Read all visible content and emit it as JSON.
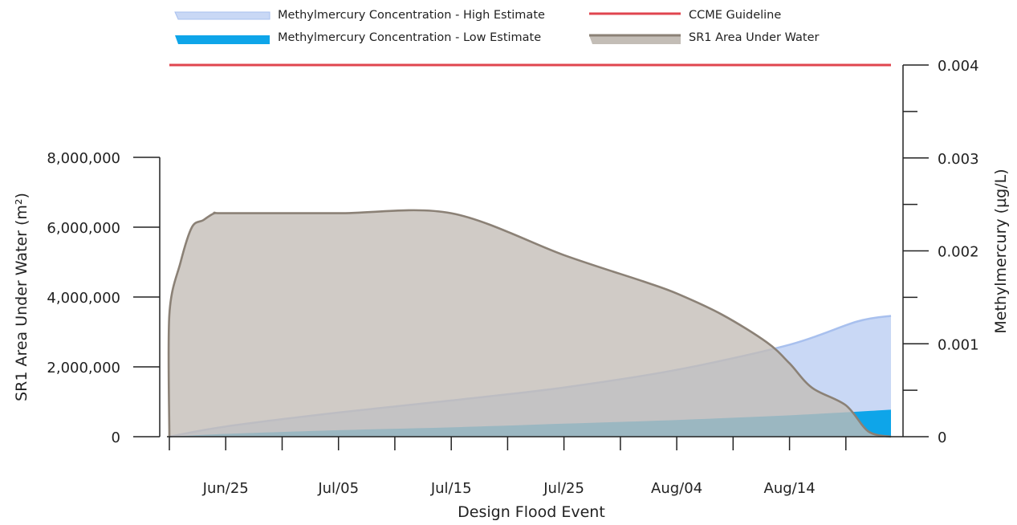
{
  "chart_data": {
    "type": "area",
    "xlabel": "Design Flood Event",
    "ylabel_left": "SR1 Area Under Water (m²)",
    "ylabel_right": "Methylmercury (µg/L)",
    "x_range": [
      "Jun/20",
      "Aug/23"
    ],
    "x_tick_labels": [
      "Jun/25",
      "Jul/05",
      "Jul/15",
      "Jul/25",
      "Aug/04",
      "Aug/14"
    ],
    "ylim_left": [
      0,
      8000000
    ],
    "ylim_right": [
      0,
      0.004
    ],
    "left_tick_labels": [
      "0",
      "2,000,000",
      "4,000,000",
      "6,000,000",
      "8,000,000"
    ],
    "right_tick_labels": [
      "0",
      "0.001",
      "0.002",
      "0.003",
      "0.004"
    ],
    "legend": {
      "placement": "top",
      "entries": [
        "Methylmercury Concentration - High Estimate",
        "CCME Guideline",
        "Methylmercury Concentration - Low Estimate",
        "SR1 Area Under Water"
      ]
    },
    "colors": {
      "high_fill": "#c9d8f5",
      "high_line": "#a8c0ee",
      "low_fill": "#0ea5e9",
      "ccme": "#e0454f",
      "area_fill": "#c3bdb6",
      "area_line": "#8b8176"
    },
    "series": [
      {
        "name": "SR1 Area Under Water",
        "axis": "left",
        "x": [
          "Jun/20",
          "Jun/20",
          "Jun/21",
          "Jun/22",
          "Jun/23",
          "Jun/24",
          "Jun/25",
          "Jul/05",
          "Jul/15",
          "Jul/25",
          "Aug/01",
          "Aug/04",
          "Aug/08",
          "Aug/12",
          "Aug/14",
          "Aug/16",
          "Aug/19",
          "Aug/21",
          "Aug/23"
        ],
        "values": [
          0,
          3500000,
          5000000,
          6000000,
          6200000,
          6400000,
          6400000,
          6400000,
          6400000,
          5200000,
          4450000,
          4100000,
          3500000,
          2700000,
          2100000,
          1400000,
          900000,
          150000,
          0
        ]
      },
      {
        "name": "Methylmercury Concentration - High Estimate",
        "axis": "right",
        "x": [
          "Jun/20",
          "Jun/25",
          "Jul/05",
          "Jul/15",
          "Jul/25",
          "Aug/04",
          "Aug/14",
          "Aug/20",
          "Aug/23"
        ],
        "values": [
          0,
          0.00011,
          0.00026,
          0.00039,
          0.00053,
          0.00072,
          0.00099,
          0.00124,
          0.0013
        ]
      },
      {
        "name": "Methylmercury Concentration - Low Estimate",
        "axis": "right",
        "x": [
          "Jun/20",
          "Jun/25",
          "Jul/05",
          "Jul/15",
          "Jul/25",
          "Aug/04",
          "Aug/14",
          "Aug/23"
        ],
        "values": [
          0,
          3e-05,
          7e-05,
          0.0001,
          0.00014,
          0.00018,
          0.00023,
          0.00029
        ]
      },
      {
        "name": "CCME Guideline",
        "axis": "right",
        "x": [
          "Jun/20",
          "Aug/23"
        ],
        "values": [
          0.004,
          0.004
        ]
      }
    ]
  }
}
